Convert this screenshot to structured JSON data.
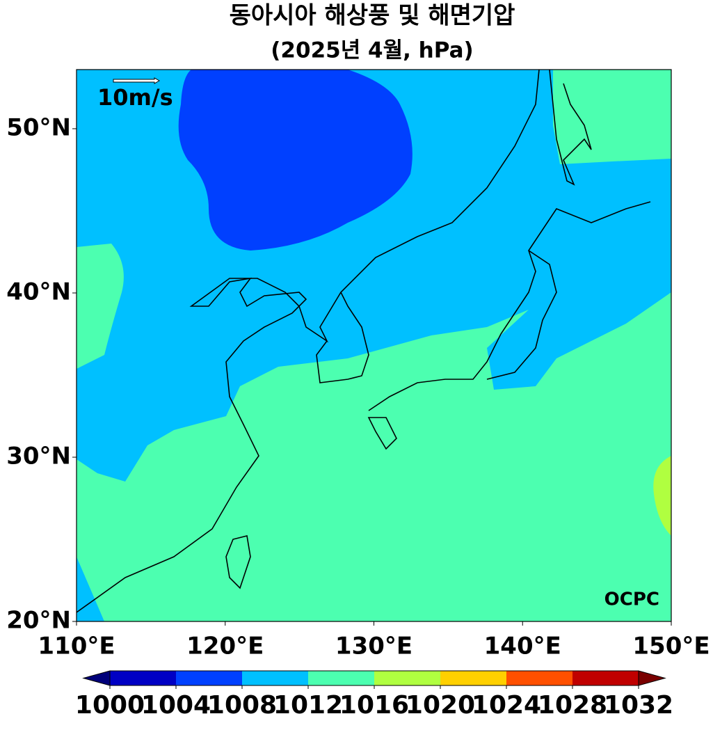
{
  "title": "동아시아 해상풍 및 해면기압",
  "subtitle": "(2025년 4월, hPa)",
  "map": {
    "xlim": [
      110,
      150
    ],
    "ylim": [
      20,
      53.6
    ],
    "xticks": [
      {
        "value": 110,
        "label": "110°E"
      },
      {
        "value": 120,
        "label": "120°E"
      },
      {
        "value": 130,
        "label": "130°E"
      },
      {
        "value": 140,
        "label": "140°E"
      },
      {
        "value": 150,
        "label": "150°E"
      }
    ],
    "yticks": [
      {
        "value": 20,
        "label": "20°N"
      },
      {
        "value": 30,
        "label": "30°N"
      },
      {
        "value": 40,
        "label": "40°N"
      },
      {
        "value": 50,
        "label": "50°N"
      }
    ],
    "reference_vector": "10m/s",
    "logo": "OCPC"
  },
  "colorbar": {
    "ticks": [
      1000,
      1004,
      1008,
      1012,
      1016,
      1020,
      1024,
      1028,
      1032
    ],
    "under_color": "#00007a",
    "over_color": "#7a0000",
    "colors": [
      "#0000c4",
      "#0040ff",
      "#00c0ff",
      "#4cffb0",
      "#b0ff40",
      "#ffd000",
      "#ff5000",
      "#c00000"
    ]
  }
}
